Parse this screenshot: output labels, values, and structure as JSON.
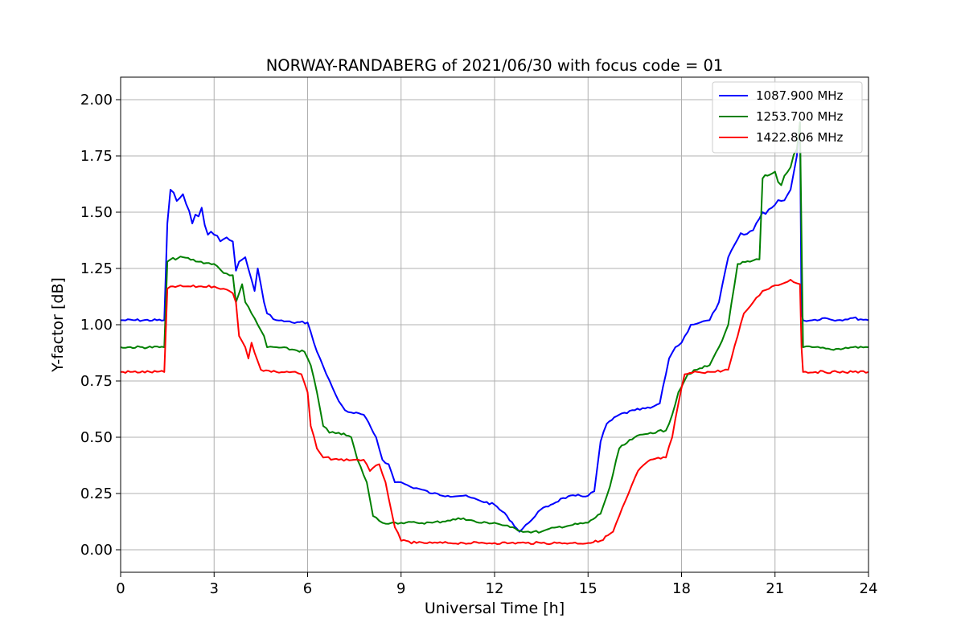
{
  "chart_data": {
    "type": "line",
    "title": "NORWAY-RANDABERG of 2021/06/30 with focus code = 01",
    "xlabel": "Universal Time [h]",
    "ylabel": "Y-factor [dB]",
    "xlim": [
      0,
      24
    ],
    "ylim": [
      -0.1,
      2.1
    ],
    "xticks": [
      "0",
      "3",
      "6",
      "9",
      "12",
      "15",
      "18",
      "21",
      "24"
    ],
    "xtick_values": [
      0,
      3,
      6,
      9,
      12,
      15,
      18,
      21,
      24
    ],
    "yticks": [
      "0.00",
      "0.25",
      "0.50",
      "0.75",
      "1.00",
      "1.25",
      "1.50",
      "1.75",
      "2.00"
    ],
    "ytick_values": [
      0,
      0.25,
      0.5,
      0.75,
      1.0,
      1.25,
      1.5,
      1.75,
      2.0
    ],
    "grid": true,
    "legend_position": "top-right",
    "series": [
      {
        "name": "1087.900 MHz",
        "color": "#0000ff",
        "x": [
          0,
          1.4,
          1.5,
          1.6,
          1.8,
          2.0,
          2.3,
          2.6,
          2.8,
          3.0,
          3.3,
          3.6,
          3.7,
          3.8,
          4.0,
          4.2,
          4.3,
          4.4,
          4.6,
          4.7,
          5.0,
          5.5,
          6.0,
          6.2,
          6.4,
          6.6,
          6.8,
          7.0,
          7.2,
          7.4,
          7.8,
          8.2,
          8.4,
          8.6,
          8.8,
          9.0,
          9.3,
          9.6,
          10.0,
          10.5,
          11.0,
          11.5,
          12.0,
          12.4,
          12.8,
          13.1,
          13.4,
          13.8,
          14.2,
          14.6,
          15.0,
          15.2,
          15.4,
          15.6,
          16.0,
          16.5,
          17.0,
          17.3,
          17.6,
          17.8,
          18.0,
          18.3,
          18.6,
          18.9,
          19.2,
          19.5,
          19.8,
          20.0,
          20.3,
          20.6,
          20.9,
          21.2,
          21.5,
          21.7,
          21.8,
          21.85,
          21.9,
          22.2,
          22.6,
          23.0,
          23.5,
          24.0
        ],
        "y": [
          1.02,
          1.02,
          1.45,
          1.6,
          1.55,
          1.58,
          1.45,
          1.52,
          1.4,
          1.4,
          1.38,
          1.37,
          1.24,
          1.28,
          1.3,
          1.2,
          1.15,
          1.25,
          1.1,
          1.05,
          1.02,
          1.01,
          1.01,
          0.92,
          0.85,
          0.78,
          0.72,
          0.66,
          0.62,
          0.61,
          0.6,
          0.5,
          0.4,
          0.38,
          0.3,
          0.3,
          0.28,
          0.27,
          0.25,
          0.24,
          0.24,
          0.22,
          0.2,
          0.15,
          0.08,
          0.12,
          0.17,
          0.2,
          0.23,
          0.24,
          0.24,
          0.26,
          0.48,
          0.56,
          0.6,
          0.62,
          0.63,
          0.65,
          0.85,
          0.9,
          0.92,
          1.0,
          1.01,
          1.02,
          1.1,
          1.3,
          1.38,
          1.4,
          1.42,
          1.5,
          1.52,
          1.55,
          1.6,
          1.75,
          1.9,
          1.05,
          1.02,
          1.02,
          1.03,
          1.02,
          1.03,
          1.02
        ]
      },
      {
        "name": "1253.700 MHz",
        "color": "#008000",
        "x": [
          0,
          1.4,
          1.5,
          1.6,
          2.0,
          2.5,
          3.0,
          3.3,
          3.6,
          3.7,
          3.9,
          4.0,
          4.2,
          4.4,
          4.6,
          4.7,
          5.0,
          5.5,
          5.9,
          6.1,
          6.3,
          6.5,
          6.7,
          7.0,
          7.4,
          7.6,
          7.9,
          8.1,
          8.4,
          8.7,
          9.0,
          9.5,
          10.0,
          10.5,
          11.0,
          11.5,
          12.0,
          12.5,
          13.0,
          13.5,
          14.0,
          14.5,
          15.0,
          15.4,
          15.7,
          16.0,
          16.5,
          17.0,
          17.5,
          17.7,
          17.9,
          18.2,
          18.5,
          18.9,
          19.2,
          19.5,
          19.8,
          20.2,
          20.5,
          20.6,
          21.0,
          21.2,
          21.5,
          21.7,
          21.8,
          21.9,
          22.2,
          22.8,
          23.5,
          24.0
        ],
        "y": [
          0.9,
          0.9,
          1.28,
          1.29,
          1.3,
          1.28,
          1.27,
          1.23,
          1.22,
          1.1,
          1.18,
          1.1,
          1.05,
          1.0,
          0.95,
          0.9,
          0.9,
          0.89,
          0.88,
          0.82,
          0.7,
          0.55,
          0.52,
          0.52,
          0.5,
          0.4,
          0.3,
          0.15,
          0.12,
          0.12,
          0.12,
          0.12,
          0.12,
          0.13,
          0.14,
          0.12,
          0.12,
          0.1,
          0.08,
          0.08,
          0.1,
          0.11,
          0.12,
          0.16,
          0.28,
          0.45,
          0.5,
          0.52,
          0.53,
          0.6,
          0.7,
          0.78,
          0.8,
          0.82,
          0.9,
          1.0,
          1.27,
          1.28,
          1.29,
          1.65,
          1.68,
          1.62,
          1.7,
          1.78,
          1.9,
          0.9,
          0.9,
          0.89,
          0.9,
          0.9
        ]
      },
      {
        "name": "1422.806 MHz",
        "color": "#ff0000",
        "x": [
          0,
          1.4,
          1.5,
          1.6,
          2.0,
          2.5,
          3.0,
          3.3,
          3.6,
          3.7,
          3.8,
          4.0,
          4.1,
          4.2,
          4.5,
          5.0,
          5.5,
          5.8,
          6.0,
          6.1,
          6.3,
          6.5,
          7.0,
          7.5,
          7.8,
          8.0,
          8.3,
          8.5,
          8.8,
          9.0,
          9.5,
          10.0,
          10.5,
          11.0,
          11.5,
          12.0,
          12.5,
          13.0,
          13.5,
          14.0,
          14.5,
          15.0,
          15.4,
          15.8,
          16.0,
          16.3,
          16.6,
          17.0,
          17.5,
          17.7,
          17.9,
          18.1,
          18.5,
          19.0,
          19.5,
          19.8,
          20.0,
          20.3,
          20.6,
          20.9,
          21.2,
          21.5,
          21.8,
          21.85,
          21.9,
          22.3,
          23.0,
          23.5,
          24.0
        ],
        "y": [
          0.79,
          0.79,
          1.16,
          1.17,
          1.17,
          1.17,
          1.17,
          1.16,
          1.14,
          1.1,
          0.95,
          0.9,
          0.85,
          0.92,
          0.8,
          0.79,
          0.79,
          0.78,
          0.7,
          0.55,
          0.45,
          0.41,
          0.4,
          0.4,
          0.4,
          0.35,
          0.38,
          0.3,
          0.1,
          0.04,
          0.03,
          0.03,
          0.03,
          0.03,
          0.03,
          0.03,
          0.03,
          0.03,
          0.03,
          0.03,
          0.03,
          0.03,
          0.04,
          0.08,
          0.15,
          0.25,
          0.35,
          0.4,
          0.41,
          0.5,
          0.65,
          0.78,
          0.79,
          0.79,
          0.8,
          0.95,
          1.05,
          1.1,
          1.15,
          1.17,
          1.18,
          1.2,
          1.18,
          0.9,
          0.79,
          0.79,
          0.79,
          0.79,
          0.79
        ]
      }
    ]
  }
}
